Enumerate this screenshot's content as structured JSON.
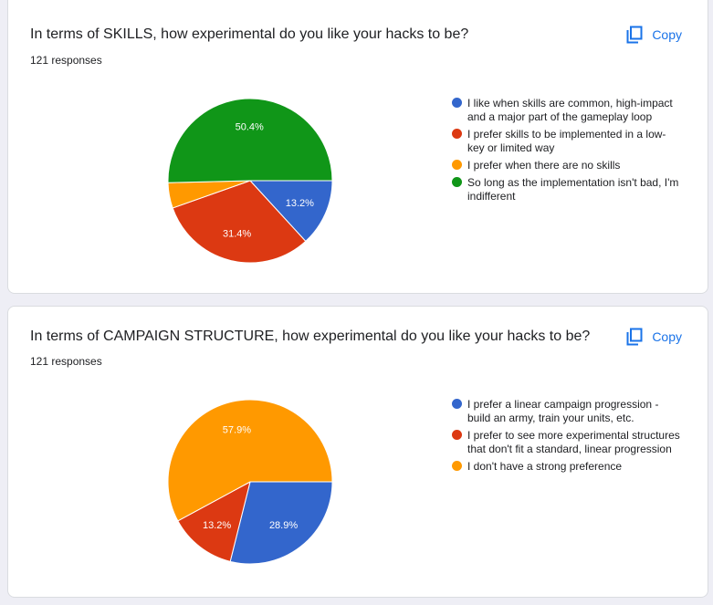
{
  "copy_label": "Copy",
  "colors": {
    "blue": "#3366cc",
    "red": "#dc3912",
    "orange": "#ff9900",
    "green": "#109618",
    "accent": "#1a73e8"
  },
  "chart_data": [
    {
      "type": "pie",
      "title": "In terms of SKILLS, how experimental do you like your hacks to be?",
      "responses": "121 responses",
      "slices": [
        {
          "label": "I like when skills are common, high-impact and a major part of the gameplay loop",
          "value": 13.2,
          "display": "13.2%",
          "color": "#3366cc"
        },
        {
          "label": "I prefer skills to be implemented in a low-key or limited way",
          "value": 31.4,
          "display": "31.4%",
          "color": "#dc3912"
        },
        {
          "label": "I prefer when there are no skills",
          "value": 5.0,
          "display": "",
          "color": "#ff9900"
        },
        {
          "label": "So long as the implementation isn't bad, I'm indifferent",
          "value": 50.4,
          "display": "50.4%",
          "color": "#109618"
        }
      ]
    },
    {
      "type": "pie",
      "title": "In terms of CAMPAIGN STRUCTURE, how experimental do you like your hacks to be?",
      "responses": "121 responses",
      "slices": [
        {
          "label": "I prefer a linear campaign progression - build an army, train your units, etc.",
          "value": 28.9,
          "display": "28.9%",
          "color": "#3366cc"
        },
        {
          "label": "I prefer to see more experimental structures that don't fit a standard, linear progression",
          "value": 13.2,
          "display": "13.2%",
          "color": "#dc3912"
        },
        {
          "label": "I don't have a strong preference",
          "value": 57.9,
          "display": "57.9%",
          "color": "#ff9900"
        }
      ]
    }
  ]
}
